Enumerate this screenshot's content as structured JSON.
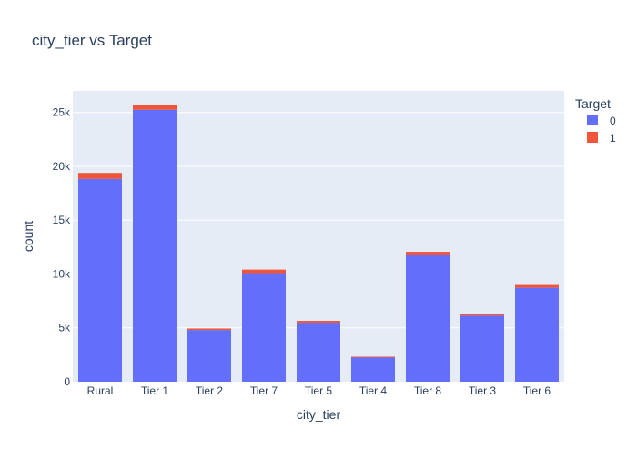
{
  "chart_data": {
    "type": "bar",
    "barmode": "stack",
    "title": "city_tier vs Target",
    "xlabel": "city_tier",
    "ylabel": "count",
    "ylim": [
      0,
      27000
    ],
    "yticks": [
      0,
      5000,
      10000,
      15000,
      20000,
      25000
    ],
    "ytick_labels": [
      "0",
      "5k",
      "10k",
      "15k",
      "20k",
      "25k"
    ],
    "grid": true,
    "legend_title": "Target",
    "legend_position": "right",
    "categories": [
      "Rural",
      "Tier 1",
      "Tier 2",
      "Tier 7",
      "Tier 5",
      "Tier 4",
      "Tier 8",
      "Tier 3",
      "Tier 6"
    ],
    "series": [
      {
        "name": "0",
        "color": "#636efa",
        "values": [
          18830,
          25250,
          4800,
          10080,
          5480,
          2240,
          11730,
          6130,
          8720
        ]
      },
      {
        "name": "1",
        "color": "#ef553b",
        "values": [
          560,
          400,
          140,
          330,
          170,
          80,
          330,
          180,
          260
        ]
      }
    ],
    "plot_background": "#e5ecf6",
    "gridline_color": "#ffffff"
  }
}
